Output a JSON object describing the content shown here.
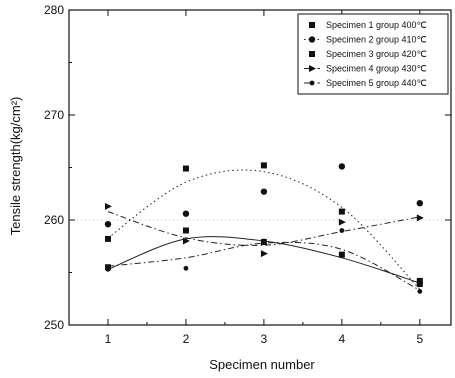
{
  "chart_data": {
    "type": "scatter",
    "xlabel": "Specimen number",
    "ylabel": "Tensile strength(kg/cm²)",
    "xlim": [
      0.5,
      5.4
    ],
    "ylim": [
      250,
      280
    ],
    "x": [
      1,
      2,
      3,
      4,
      5
    ],
    "x_ticks": [
      1,
      2,
      3,
      4,
      5
    ],
    "y_ticks": [
      250,
      260,
      270,
      280
    ],
    "legend_position": "top-right",
    "grid": false,
    "series": [
      {
        "name": "Specimen 1 group 400℃",
        "marker": "square",
        "line": "solid",
        "color": "#111111",
        "values": [
          255.5,
          259.0,
          257.9,
          256.7,
          254.2
        ],
        "fit": [
          255.3,
          258.2,
          258.0,
          256.4,
          254.0
        ]
      },
      {
        "name": "Specimen 2 group 410℃",
        "marker": "circle",
        "line": "dot",
        "color": "#111111",
        "values": [
          259.6,
          260.6,
          262.7,
          265.1,
          261.6
        ],
        "fit": [
          258.3,
          263.6,
          264.6,
          261.2,
          253.4
        ]
      },
      {
        "name": "Specimen 3 group 420℃",
        "marker": "square",
        "line": "none",
        "color": "#111111",
        "values": [
          258.2,
          264.9,
          265.2,
          260.8,
          253.9
        ],
        "fit": []
      },
      {
        "name": "Specimen 4 group 430℃",
        "marker": "triangle-right",
        "line": "dashdot",
        "color": "#111111",
        "values": [
          261.3,
          258.0,
          256.8,
          259.8,
          260.2
        ],
        "fit": [
          260.8,
          258.3,
          257.6,
          258.9,
          260.3
        ]
      },
      {
        "name": "Specimen 5 group 440℃",
        "marker": "circle-small",
        "line": "dashdot",
        "color": "#111111",
        "values": [
          255.3,
          255.4,
          258.0,
          259.0,
          253.2
        ],
        "fit": [
          255.6,
          256.4,
          257.8,
          257.2,
          253.3
        ]
      }
    ]
  }
}
